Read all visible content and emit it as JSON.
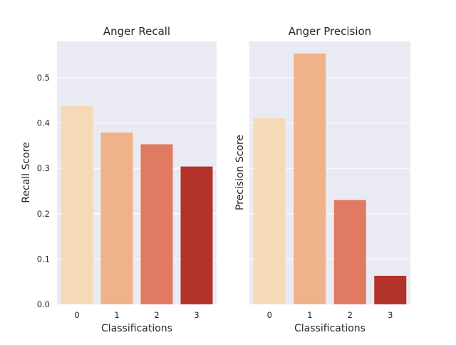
{
  "chart_data": [
    {
      "type": "bar",
      "title": "Anger Recall",
      "xlabel": "Classifications",
      "ylabel": "Recall Score",
      "categories": [
        "0",
        "1",
        "2",
        "3"
      ],
      "values": [
        0.437,
        0.379,
        0.353,
        0.304
      ],
      "colors": [
        "#f6dab7",
        "#efb28a",
        "#e07a62",
        "#b3332b"
      ],
      "ylim": [
        0,
        0.58
      ],
      "yticks": [
        "0.0",
        "0.1",
        "0.2",
        "0.3",
        "0.4",
        "0.5"
      ],
      "grid": true
    },
    {
      "type": "bar",
      "title": "Anger Precision",
      "xlabel": "Classifications",
      "ylabel": "Precision Score",
      "categories": [
        "0",
        "1",
        "2",
        "3"
      ],
      "values": [
        0.41,
        0.553,
        0.23,
        0.063
      ],
      "colors": [
        "#f6dab7",
        "#efb28a",
        "#e07a62",
        "#b3332b"
      ],
      "ylim": [
        0,
        0.58
      ],
      "grid": true
    }
  ]
}
